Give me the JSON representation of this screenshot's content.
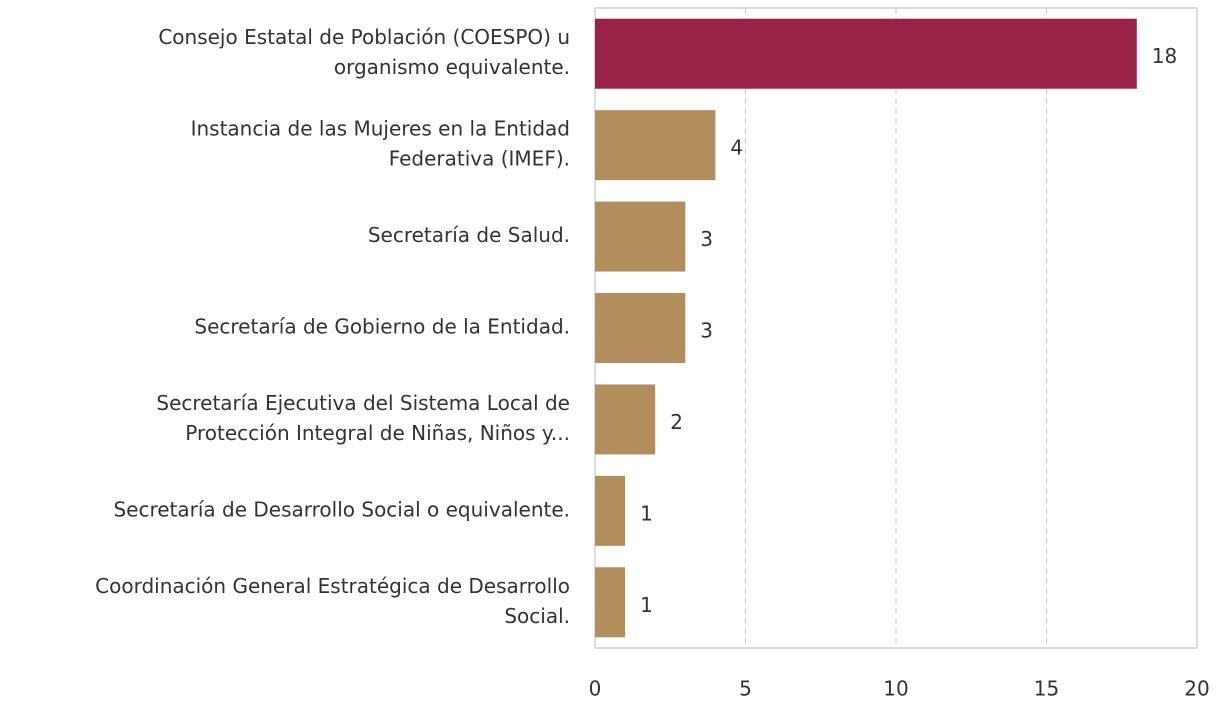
{
  "chart_data": {
    "type": "barh",
    "categories": [
      [
        "Consejo Estatal de Población (COESPO) u",
        "organismo equivalente."
      ],
      [
        "Instancia de las Mujeres en la Entidad",
        "Federativa (IMEF)."
      ],
      [
        "Secretaría de Salud."
      ],
      [
        "Secretaría de Gobierno de la Entidad."
      ],
      [
        "Secretaría Ejecutiva del Sistema Local de",
        "Protección Integral de Niñas, Niños y..."
      ],
      [
        "Secretaría de Desarrollo Social o equivalente."
      ],
      [
        "Coordinación General Estratégica de Desarrollo",
        "Social."
      ]
    ],
    "values": [
      18,
      4,
      3,
      3,
      2,
      1,
      1
    ],
    "colors": [
      "#9b2247",
      "#b38e5d",
      "#b38e5d",
      "#b38e5d",
      "#b38e5d",
      "#b38e5d",
      "#b38e5d"
    ],
    "xlim": [
      0,
      20
    ],
    "xticks": [
      0,
      5,
      10,
      15,
      20
    ],
    "grid": true
  }
}
